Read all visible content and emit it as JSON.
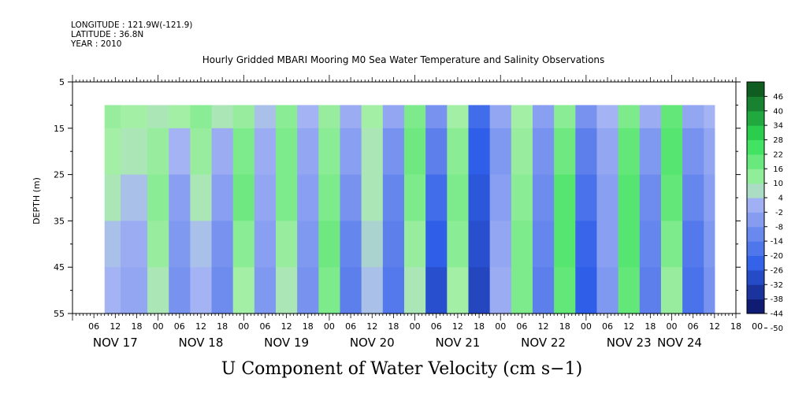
{
  "header": {
    "longitude": "LONGITUDE : 121.9W(-121.9)",
    "latitude": "LATITUDE : 36.8N",
    "year": "YEAR : 2010"
  },
  "colors": {
    "scale_dark_blue": "#0a1060",
    "scale_mid_blue": "#2f5fe8",
    "scale_light_blue": "#a9b6f4",
    "scale_light_green": "#aaf0aa",
    "scale_mid_green": "#2fe055",
    "scale_dark_green": "#0a4a1a"
  },
  "chart_data": {
    "type": "heatmap",
    "title": "Hourly Gridded MBARI Mooring M0 Sea Water Temperature and Salinity Observations",
    "xlabel": "U Component of Water Velocity (cm s−1)",
    "ylabel": "DEPTH (m)",
    "x_axis_start_hour": 0,
    "x_range_hours": [
      0,
      186
    ],
    "y_range_m": [
      5,
      55
    ],
    "y_reversed": true,
    "y_ticks": [
      5,
      15,
      25,
      35,
      45,
      55
    ],
    "y_tick_labels": [
      "5",
      "15",
      "25",
      "35",
      "45",
      "55"
    ],
    "x_hour_labels": [
      "06",
      "12",
      "18",
      "00",
      "06",
      "12",
      "18",
      "00",
      "06",
      "12",
      "18",
      "00",
      "06",
      "12",
      "18",
      "00",
      "06",
      "12",
      "18",
      "00",
      "06",
      "12",
      "18",
      "00",
      "06",
      "12",
      "18",
      "00",
      "06",
      "12",
      "18",
      "00"
    ],
    "day_labels": [
      "NOV 17",
      "NOV 18",
      "NOV 19",
      "NOV 20",
      "NOV 21",
      "NOV 22",
      "NOV 23",
      "NOV 24"
    ],
    "data_depth_range_m": [
      10,
      55
    ],
    "data_time_range_hours": [
      9,
      180
    ],
    "colorbar_levels": [
      -50,
      -44,
      -38,
      -32,
      -26,
      -20,
      -14,
      -8,
      -2,
      4,
      10,
      16,
      22,
      28,
      34,
      40,
      46
    ],
    "colorbar_labels": [
      "46",
      "40",
      "34",
      "28",
      "22",
      "16",
      "10",
      "4",
      "-2",
      "-8",
      "-14",
      "-20",
      "-26",
      "-32",
      "-38",
      "-44",
      "-50"
    ],
    "grid": false,
    "legend": "colorbar-right",
    "velocity_field_cm_s": {
      "time_hours": [
        9,
        18,
        24,
        30,
        36,
        42,
        48,
        54,
        60,
        66,
        72,
        78,
        84,
        90,
        96,
        102,
        108,
        114,
        120,
        126,
        132,
        138,
        144,
        150,
        156,
        162,
        168,
        174,
        180
      ],
      "depth_m": [
        10,
        20,
        30,
        40,
        50
      ],
      "u": [
        [
          6,
          4,
          2,
          -2,
          -4
        ],
        [
          4,
          2,
          -2,
          -6,
          -8
        ],
        [
          2,
          6,
          8,
          6,
          2
        ],
        [
          4,
          -4,
          -10,
          -12,
          -14
        ],
        [
          8,
          6,
          2,
          -2,
          -4
        ],
        [
          2,
          -6,
          -10,
          -14,
          -16
        ],
        [
          6,
          10,
          12,
          8,
          4
        ],
        [
          -2,
          -6,
          -8,
          -10,
          -12
        ],
        [
          8,
          10,
          10,
          6,
          2
        ],
        [
          -4,
          -8,
          -10,
          -12,
          -14
        ],
        [
          6,
          8,
          10,
          12,
          10
        ],
        [
          -6,
          -10,
          -14,
          -18,
          -20
        ],
        [
          4,
          2,
          2,
          0,
          -2
        ],
        [
          -8,
          -14,
          -18,
          -20,
          -22
        ],
        [
          10,
          12,
          10,
          6,
          2
        ],
        [
          -14,
          -20,
          -26,
          -30,
          -34
        ],
        [
          4,
          8,
          10,
          8,
          4
        ],
        [
          -26,
          -30,
          -32,
          -34,
          -36
        ],
        [
          -8,
          -12,
          -10,
          -8,
          -6
        ],
        [
          4,
          6,
          8,
          10,
          10
        ],
        [
          -10,
          -14,
          -16,
          -18,
          -20
        ],
        [
          8,
          12,
          16,
          16,
          14
        ],
        [
          -14,
          -20,
          -24,
          -28,
          -30
        ],
        [
          -4,
          -8,
          -10,
          -10,
          -12
        ],
        [
          10,
          14,
          16,
          16,
          14
        ],
        [
          -6,
          -12,
          -16,
          -18,
          -20
        ],
        [
          14,
          16,
          14,
          10,
          6
        ],
        [
          -8,
          -14,
          -18,
          -22,
          -24
        ],
        [
          -4,
          -8,
          -10,
          -12,
          -14
        ]
      ]
    }
  }
}
